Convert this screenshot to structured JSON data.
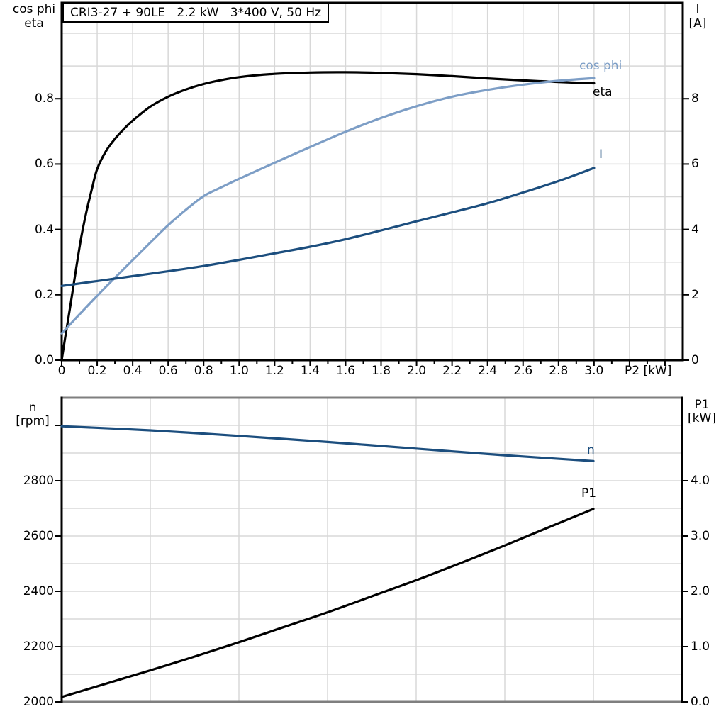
{
  "colors": {
    "eta_black": "#000000",
    "cos_phi_blue": "#7D9EC6",
    "current_dark_blue": "#1C4E7E",
    "speed_dark_blue": "#1C4E7E",
    "p1_black": "#000000",
    "grid": "#D8D8D8",
    "frame_gray": "#7F7F7F",
    "frame_black": "#000000"
  },
  "chart_data": [
    {
      "type": "line",
      "title": "CRI3-27 + 90LE   2.2 kW   3*400 V, 50 Hz",
      "x_axis": {
        "label": "P2 [kW]",
        "min": 0,
        "max": 3.5,
        "grid_step": 0.2,
        "tick_minor_step": 0.1,
        "tick_values": [
          0,
          0.2,
          0.4,
          0.6,
          0.8,
          1.0,
          1.2,
          1.4,
          1.6,
          1.8,
          2.0,
          2.2,
          2.4,
          2.6,
          2.8,
          3.0,
          3.2,
          3.4
        ],
        "tick_labels": [
          "0",
          "0.2",
          "0.4",
          "0.6",
          "0.8",
          "1.0",
          "1.2",
          "1.4",
          "1.6",
          "1.8",
          "2.0",
          "2.2",
          "2.4",
          "2.6",
          "2.8",
          "3.0",
          "",
          ""
        ]
      },
      "left_axis": {
        "title_line1": "cos phi",
        "title_line2": "eta",
        "min": 0,
        "max": 1.0933,
        "grid_step": 0.1,
        "tick_values": [
          0,
          0.2,
          0.4,
          0.6,
          0.8
        ],
        "tick_labels": [
          "0.0",
          "0.2",
          "0.4",
          "0.6",
          "0.8"
        ]
      },
      "right_axis": {
        "title_line1": "I",
        "title_line2": "[A]",
        "min": 0,
        "max": 10.933,
        "tick_values": [
          0,
          2,
          4,
          6,
          8
        ],
        "tick_labels": [
          "0",
          "2",
          "4",
          "6",
          "8"
        ]
      },
      "grid": true,
      "legend_position": "end-of-curve-labels",
      "series": [
        {
          "name": "eta",
          "label": "eta",
          "axis": "left",
          "color": "#000000",
          "points": [
            [
              0,
              0
            ],
            [
              0.02,
              0.07
            ],
            [
              0.05,
              0.17
            ],
            [
              0.08,
              0.275
            ],
            [
              0.11,
              0.375
            ],
            [
              0.14,
              0.455
            ],
            [
              0.17,
              0.523
            ],
            [
              0.2,
              0.585
            ],
            [
              0.25,
              0.64
            ],
            [
              0.3,
              0.677
            ],
            [
              0.35,
              0.707
            ],
            [
              0.4,
              0.733
            ],
            [
              0.5,
              0.776
            ],
            [
              0.6,
              0.806
            ],
            [
              0.7,
              0.828
            ],
            [
              0.8,
              0.845
            ],
            [
              0.9,
              0.857
            ],
            [
              1.0,
              0.866
            ],
            [
              1.2,
              0.876
            ],
            [
              1.4,
              0.88
            ],
            [
              1.6,
              0.881
            ],
            [
              1.8,
              0.879
            ],
            [
              2.0,
              0.875
            ],
            [
              2.2,
              0.869
            ],
            [
              2.4,
              0.862
            ],
            [
              2.6,
              0.856
            ],
            [
              2.8,
              0.851
            ],
            [
              3.0,
              0.847
            ]
          ]
        },
        {
          "name": "cos phi",
          "label": "cos phi",
          "axis": "left",
          "color": "#7D9EC6",
          "points": [
            [
              0,
              0.082
            ],
            [
              0.1,
              0.14
            ],
            [
              0.2,
              0.197
            ],
            [
              0.3,
              0.252
            ],
            [
              0.4,
              0.306
            ],
            [
              0.5,
              0.36
            ],
            [
              0.6,
              0.413
            ],
            [
              0.7,
              0.46
            ],
            [
              0.8,
              0.502
            ],
            [
              0.9,
              0.529
            ],
            [
              1.0,
              0.555
            ],
            [
              1.2,
              0.604
            ],
            [
              1.4,
              0.652
            ],
            [
              1.6,
              0.699
            ],
            [
              1.8,
              0.741
            ],
            [
              2.0,
              0.777
            ],
            [
              2.2,
              0.806
            ],
            [
              2.4,
              0.827
            ],
            [
              2.6,
              0.843
            ],
            [
              2.8,
              0.855
            ],
            [
              3.0,
              0.863
            ]
          ]
        },
        {
          "name": "I",
          "label": "I",
          "axis": "right",
          "color": "#1C4E7E",
          "points": [
            [
              0,
              2.27
            ],
            [
              0.2,
              2.42
            ],
            [
              0.4,
              2.57
            ],
            [
              0.6,
              2.72
            ],
            [
              0.8,
              2.88
            ],
            [
              1.0,
              3.07
            ],
            [
              1.2,
              3.27
            ],
            [
              1.4,
              3.47
            ],
            [
              1.6,
              3.7
            ],
            [
              1.8,
              3.97
            ],
            [
              2.0,
              4.25
            ],
            [
              2.2,
              4.52
            ],
            [
              2.4,
              4.8
            ],
            [
              2.6,
              5.13
            ],
            [
              2.8,
              5.48
            ],
            [
              3.0,
              5.88
            ]
          ]
        }
      ]
    },
    {
      "type": "line",
      "x_axis": {
        "min": 0,
        "max": 3.5,
        "grid_step": 0.5,
        "tick_values": [],
        "tick_labels": []
      },
      "left_axis": {
        "title_line1": "n",
        "title_line2": "[rpm]",
        "min": 2000,
        "max": 3100,
        "grid_step": 100,
        "tick_values": [
          2000,
          2200,
          2400,
          2600,
          2800,
          3000
        ],
        "tick_labels": [
          "2000",
          "2200",
          "2400",
          "2600",
          "2800",
          ""
        ]
      },
      "right_axis": {
        "title_line1": "P1",
        "title_line2": "[kW]",
        "min": 0,
        "max": 5.5,
        "tick_values": [
          0,
          1,
          2,
          3,
          4
        ],
        "tick_labels": [
          "0.0",
          "1.0",
          "2.0",
          "3.0",
          "4.0"
        ]
      },
      "grid": true,
      "series": [
        {
          "name": "n",
          "label": "n",
          "axis": "left",
          "color": "#1C4E7E",
          "points": [
            [
              0,
              2997
            ],
            [
              0.5,
              2982
            ],
            [
              1.0,
              2962
            ],
            [
              1.5,
              2940
            ],
            [
              2.0,
              2916
            ],
            [
              2.5,
              2892
            ],
            [
              3.0,
              2871
            ]
          ]
        },
        {
          "name": "P1",
          "label": "P1",
          "axis": "right",
          "color": "#000000",
          "points": [
            [
              0,
              0.09
            ],
            [
              0.25,
              0.33
            ],
            [
              0.5,
              0.57
            ],
            [
              0.75,
              0.82
            ],
            [
              1.0,
              1.08
            ],
            [
              1.25,
              1.35
            ],
            [
              1.5,
              1.62
            ],
            [
              1.75,
              1.91
            ],
            [
              2.0,
              2.2
            ],
            [
              2.25,
              2.51
            ],
            [
              2.5,
              2.83
            ],
            [
              2.75,
              3.16
            ],
            [
              3.0,
              3.49
            ]
          ]
        }
      ]
    }
  ]
}
